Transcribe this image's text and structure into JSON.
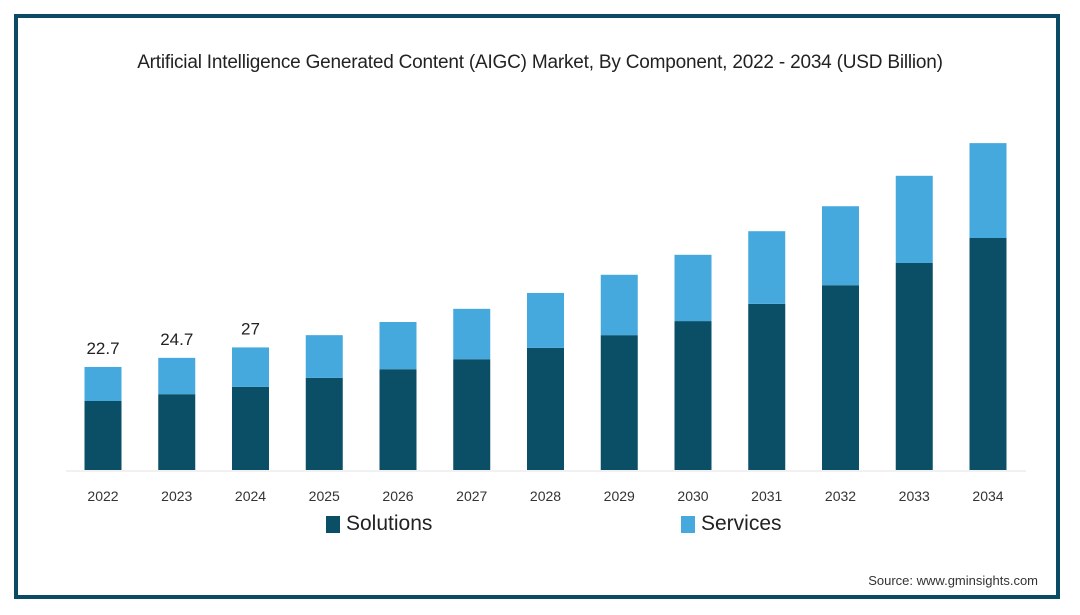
{
  "chart_data": {
    "type": "bar",
    "stacked": true,
    "title": "Artificial Intelligence Generated Content (AIGC) Market, By Component, 2022 - 2034 (USD Billion)",
    "xlabel": "",
    "ylabel": "",
    "categories": [
      "2022",
      "2023",
      "2024",
      "2025",
      "2026",
      "2027",
      "2028",
      "2029",
      "2030",
      "2031",
      "2032",
      "2033",
      "2034"
    ],
    "series": [
      {
        "name": "Solutions",
        "color": "#0b4f67",
        "values": [
          15.2,
          16.7,
          18.3,
          20.3,
          22.2,
          24.4,
          26.9,
          29.7,
          32.8,
          36.6,
          40.7,
          45.6,
          51.1
        ]
      },
      {
        "name": "Services",
        "color": "#45a9de",
        "values": [
          7.5,
          8.0,
          8.7,
          9.4,
          10.4,
          11.1,
          12.1,
          13.3,
          14.6,
          16.0,
          17.4,
          19.2,
          20.9
        ]
      }
    ],
    "data_labels": [
      {
        "category": "2022",
        "text": "22.7"
      },
      {
        "category": "2023",
        "text": "24.7"
      },
      {
        "category": "2024",
        "text": "27"
      }
    ],
    "ylim": [
      0,
      75
    ],
    "grid": false,
    "legend": "bottom",
    "source": "Source: www.gminsights.com"
  },
  "frame_color": "#0b4a63"
}
